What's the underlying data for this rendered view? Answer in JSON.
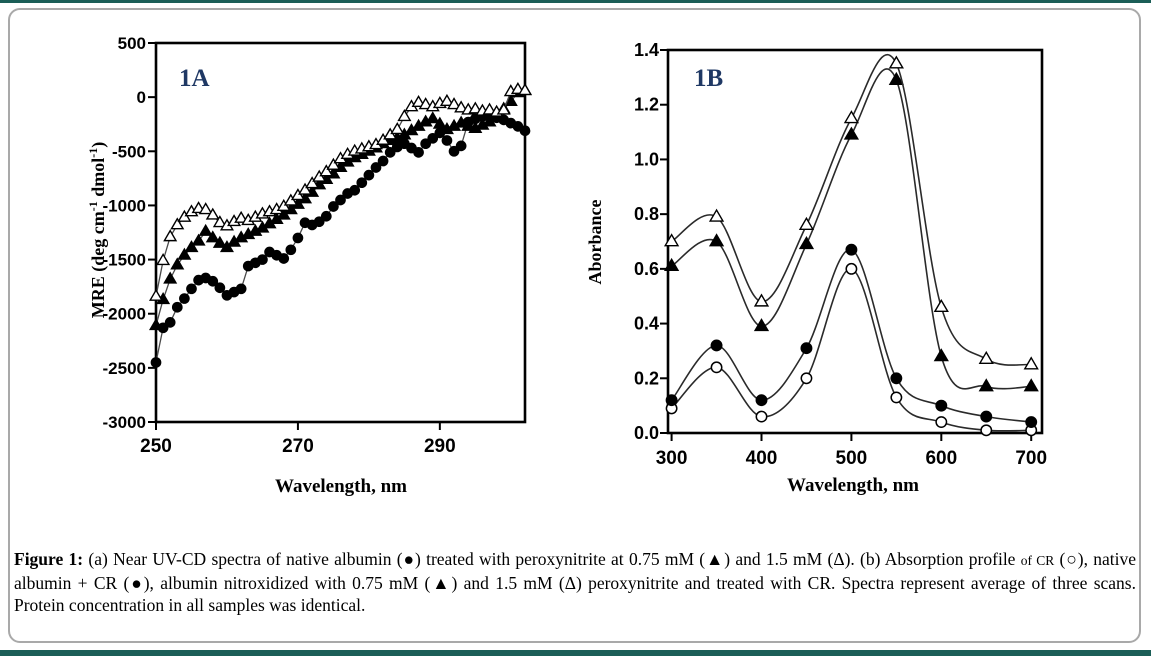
{
  "accent": {
    "bar_color": "#1b5e57",
    "panel_label_color": "#1f3864",
    "card_border_color": "#a9a9a9",
    "plot_color": "#000000"
  },
  "caption": {
    "label": "Figure 1:",
    "part1": " (a) Near UV-CD spectra of native albumin (●) treated with peroxynitrite at 0.75 mM (▲) and 1.5 mM (Δ). (b) Absorption profile ",
    "small": "of CR",
    "part2": " (○), native albumin + CR (●), albumin nitroxidized with 0.75 mM (▲) and 1.5 mM (Δ) peroxynitrite and treated with CR. Spectra represent average of three scans. Protein concentration in all samples was identical."
  },
  "chart_data": [
    {
      "id": "chartA",
      "type": "line",
      "panel_label": "1A",
      "xlabel": "Wavelength, nm",
      "ylabel_parts": [
        {
          "t": "MRE (deg cm"
        },
        {
          "t": "-1",
          "sup": true
        },
        {
          "t": " dmol"
        },
        {
          "t": "-1",
          "sup": true
        },
        {
          "t": ")"
        }
      ],
      "xlim": [
        250,
        302
      ],
      "ylim": [
        -3000,
        500
      ],
      "x_ticks": {
        "values": [
          250,
          270,
          290
        ],
        "labels": [
          "250",
          "270",
          "290"
        ]
      },
      "y_ticks": {
        "values": [
          500,
          0,
          -500,
          -1000,
          -1500,
          -2000,
          -2500,
          -3000
        ],
        "labels": [
          "500",
          "0",
          "-500",
          "-1000",
          "-1500",
          "-2000",
          "-2500",
          "-3000"
        ]
      },
      "smooth": false,
      "legend": "none",
      "series": [
        {
          "name": "native albumin",
          "marker": "circle-filled",
          "x_start": 250,
          "x_step": 1,
          "values": [
            -2450,
            -2130,
            -2080,
            -1940,
            -1860,
            -1770,
            -1690,
            -1670,
            -1700,
            -1760,
            -1830,
            -1800,
            -1770,
            -1560,
            -1530,
            -1500,
            -1430,
            -1460,
            -1490,
            -1410,
            -1300,
            -1160,
            -1180,
            -1150,
            -1100,
            -1010,
            -950,
            -890,
            -860,
            -790,
            -720,
            -650,
            -590,
            -510,
            -460,
            -430,
            -470,
            -510,
            -430,
            -380,
            -330,
            -400,
            -500,
            -450,
            -230,
            -200,
            -180,
            -160,
            -190,
            -210,
            -240,
            -270,
            -310
          ]
        },
        {
          "name": "0.75 mM peroxynitrite",
          "marker": "triangle-filled",
          "x_start": 250,
          "x_step": 1,
          "values": [
            -2110,
            -1870,
            -1680,
            -1550,
            -1460,
            -1390,
            -1330,
            -1240,
            -1300,
            -1350,
            -1390,
            -1340,
            -1300,
            -1270,
            -1240,
            -1210,
            -1170,
            -1130,
            -1090,
            -1040,
            -990,
            -940,
            -880,
            -810,
            -760,
            -710,
            -650,
            -600,
            -560,
            -530,
            -500,
            -470,
            -430,
            -400,
            -380,
            -350,
            -310,
            -270,
            -230,
            -200,
            -250,
            -300,
            -270,
            -240,
            -270,
            -290,
            -260,
            -230,
            -170,
            -110,
            -40,
            40,
            60
          ]
        },
        {
          "name": "1.5 mM peroxynitrite",
          "marker": "triangle-open",
          "x_start": 250,
          "x_step": 1,
          "values": [
            -1840,
            -1510,
            -1290,
            -1180,
            -1110,
            -1060,
            -1030,
            -1040,
            -1090,
            -1160,
            -1190,
            -1150,
            -1120,
            -1140,
            -1110,
            -1080,
            -1060,
            -1040,
            -1010,
            -960,
            -910,
            -860,
            -800,
            -740,
            -690,
            -630,
            -570,
            -530,
            -500,
            -480,
            -460,
            -440,
            -400,
            -350,
            -300,
            -180,
            -90,
            -50,
            -70,
            -90,
            -60,
            -40,
            -70,
            -100,
            -120,
            -110,
            -130,
            -120,
            -140,
            -120,
            50,
            70,
            60
          ]
        }
      ]
    },
    {
      "id": "chartB",
      "type": "line",
      "panel_label": "1B",
      "xlabel": "Wavelength, nm",
      "ylabel_parts": [
        {
          "t": "Aborbance"
        }
      ],
      "xlim": [
        296,
        712
      ],
      "ylim": [
        0,
        1.4
      ],
      "x_ticks": {
        "values": [
          300,
          400,
          500,
          600,
          700
        ],
        "labels": [
          "300",
          "400",
          "500",
          "600",
          "700"
        ]
      },
      "y_ticks": {
        "values": [
          1.4,
          1.2,
          1.0,
          0.8,
          0.6,
          0.4,
          0.2,
          0.0
        ],
        "labels": [
          "1.4",
          "1.2",
          "1.0",
          "0.8",
          "0.6",
          "0.4",
          "0.2",
          "0.0"
        ]
      },
      "smooth": true,
      "legend": "none",
      "series": [
        {
          "name": "CR",
          "marker": "circle-open",
          "x": [
            300,
            350,
            400,
            450,
            500,
            550,
            600,
            650,
            700
          ],
          "values": [
            0.09,
            0.24,
            0.06,
            0.2,
            0.6,
            0.13,
            0.04,
            0.01,
            0.01
          ]
        },
        {
          "name": "native albumin + CR",
          "marker": "circle-filled",
          "x": [
            300,
            350,
            400,
            450,
            500,
            550,
            600,
            650,
            700
          ],
          "values": [
            0.12,
            0.32,
            0.12,
            0.31,
            0.67,
            0.2,
            0.1,
            0.06,
            0.04
          ]
        },
        {
          "name": "0.75 mM peroxynitrite + CR",
          "marker": "triangle-filled",
          "x": [
            300,
            350,
            400,
            450,
            500,
            550,
            600,
            650,
            700
          ],
          "values": [
            0.61,
            0.7,
            0.39,
            0.69,
            1.09,
            1.29,
            0.28,
            0.17,
            0.17
          ]
        },
        {
          "name": "1.5 mM peroxynitrite + CR",
          "marker": "triangle-open",
          "x": [
            300,
            350,
            400,
            450,
            500,
            550,
            600,
            650,
            700
          ],
          "values": [
            0.7,
            0.79,
            0.48,
            0.76,
            1.15,
            1.35,
            0.46,
            0.27,
            0.25
          ]
        }
      ]
    }
  ]
}
